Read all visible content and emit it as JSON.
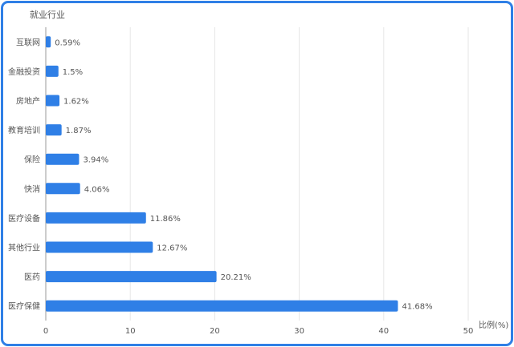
{
  "chart_data": {
    "type": "bar",
    "orientation": "horizontal",
    "title": "",
    "ylabel": "就业行业",
    "xlabel": "比例(%)",
    "categories": [
      "互联网",
      "金融投资",
      "房地产",
      "教育培训",
      "保险",
      "快消",
      "医疗设备",
      "其他行业",
      "医药",
      "医疗保健"
    ],
    "values": [
      0.59,
      1.5,
      1.62,
      1.87,
      3.94,
      4.06,
      11.86,
      12.67,
      20.21,
      41.68
    ],
    "value_labels": [
      "0.59%",
      "1.5%",
      "1.62%",
      "1.87%",
      "3.94%",
      "4.06%",
      "11.86%",
      "12.67%",
      "20.21%",
      "41.68%"
    ],
    "xlim": [
      0,
      50
    ],
    "xticks": [
      "0",
      "10",
      "20",
      "30",
      "40",
      "50"
    ],
    "grid": true,
    "bar_color": "#2f7fe6"
  }
}
